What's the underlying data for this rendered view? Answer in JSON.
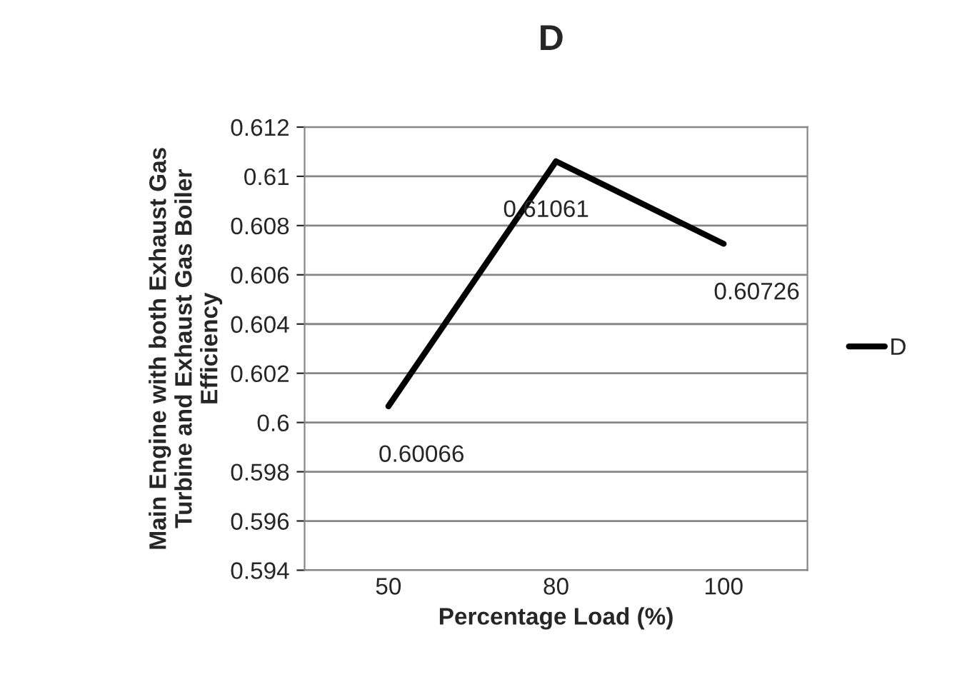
{
  "chart_data": {
    "type": "line",
    "title": "D",
    "xlabel": "Percentage Load (%)",
    "ylabel": "Main Engine with both Exhaust Gas\nTurbine and Exhaust Gas Boiler\nEfficiency",
    "categories": [
      "50",
      "80",
      "100"
    ],
    "series": [
      {
        "name": "D",
        "color": "#000000",
        "values": [
          0.60066,
          0.61061,
          0.60726
        ]
      }
    ],
    "ylim": [
      0.594,
      0.612
    ],
    "yticks": [
      0.594,
      0.596,
      0.598,
      0.6,
      0.602,
      0.604,
      0.606,
      0.608,
      0.61,
      0.612
    ],
    "grid": "y",
    "legend": "right",
    "data_labels": true,
    "marker": "none",
    "line_style": "solid"
  }
}
